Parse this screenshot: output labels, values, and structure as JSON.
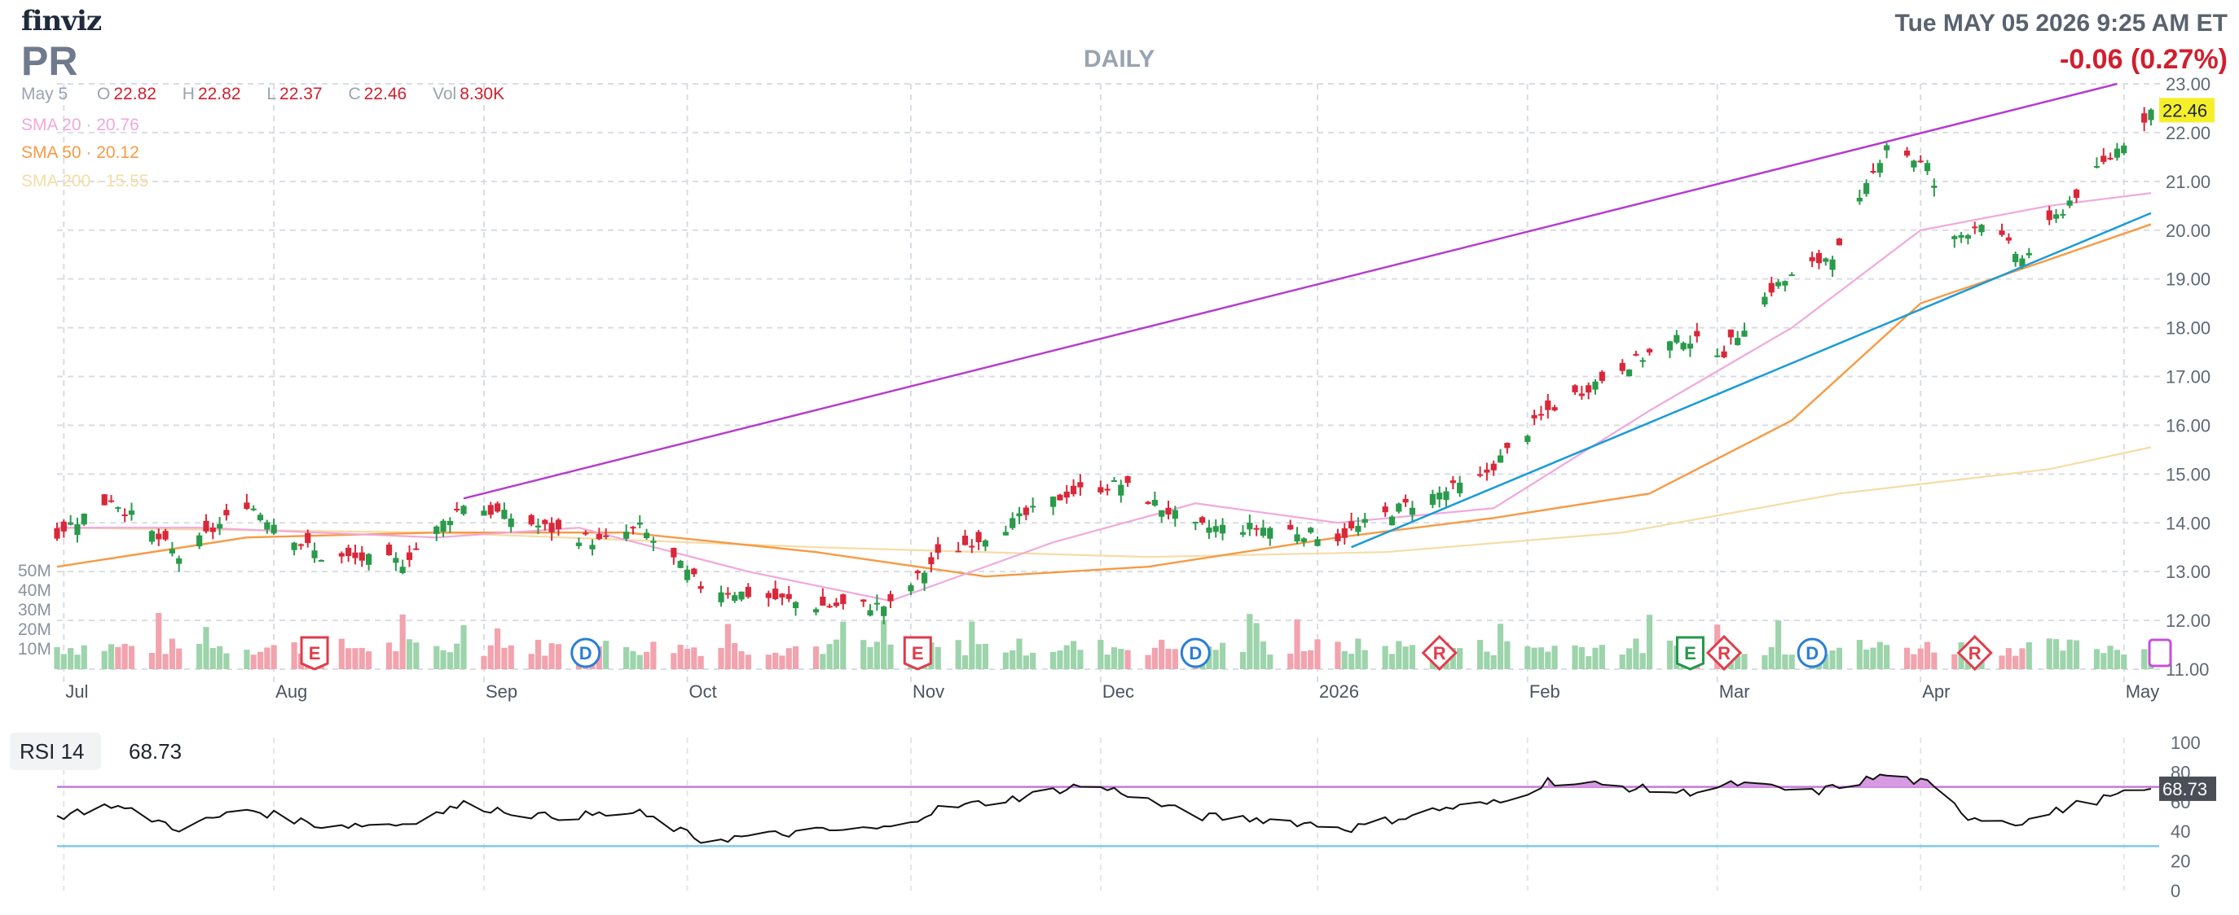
{
  "header": {
    "logo": "finviz",
    "ticker": "PR",
    "timeframe": "DAILY",
    "datetime": "Tue MAY 05 2026 9:25 AM ET",
    "change": "-0.06 (0.27%)"
  },
  "ohlc": {
    "date": "May 5",
    "open_label": "O",
    "open": "22.82",
    "high_label": "H",
    "high": "22.82",
    "low_label": "L",
    "low": "22.37",
    "close_label": "C",
    "close": "22.46",
    "vol_label": "Vol",
    "vol": "8.30K"
  },
  "indicators": {
    "sma20": "SMA 20 · 20.76",
    "sma50": "SMA 50 · 20.12",
    "sma200": "SMA 200 · 15.55"
  },
  "rsi": {
    "label": "RSI 14",
    "value": "68.73"
  },
  "colors": {
    "up": "#2a9a4b",
    "down": "#d9283a",
    "up_vol": "#9dd4ab",
    "down_vol": "#f2a3ad",
    "sma20": "#f0a9dc",
    "sma50": "#f79a45",
    "sma200": "#f6dca6",
    "trend_upper": "#b43cd0",
    "trend_lower": "#1a9bd7",
    "rsi_line": "#111111",
    "rsi_overbought": "#c47ad8",
    "rsi_oversold": "#7fc9ee"
  },
  "chart_data": [
    {
      "type": "candlestick",
      "title": "PR",
      "timeframe": "DAILY",
      "y_axis": {
        "ticks": [
          "11.00",
          "12.00",
          "13.00",
          "14.00",
          "15.00",
          "16.00",
          "17.00",
          "18.00",
          "19.00",
          "20.00",
          "21.00",
          "22.00",
          "23.00"
        ],
        "range": [
          11,
          23
        ],
        "position": "right"
      },
      "x_axis": {
        "ticks": [
          "Jul",
          "Aug",
          "Sep",
          "Oct",
          "Nov",
          "Dec",
          "2026",
          "Feb",
          "Mar",
          "Apr",
          "May"
        ],
        "range": [
          "2025-06-30",
          "2026-05-05"
        ]
      },
      "last_price_label": "22.46",
      "grid": true,
      "close_path": [
        {
          "date": "2025-06-30",
          "close": 13.8
        },
        {
          "date": "2025-07-08",
          "close": 14.5
        },
        {
          "date": "2025-07-18",
          "close": 13.3
        },
        {
          "date": "2025-07-28",
          "close": 14.4
        },
        {
          "date": "2025-08-08",
          "close": 13.3
        },
        {
          "date": "2025-08-20",
          "close": 13.2
        },
        {
          "date": "2025-08-29",
          "close": 14.4
        },
        {
          "date": "2025-09-10",
          "close": 13.9
        },
        {
          "date": "2025-09-18",
          "close": 13.6
        },
        {
          "date": "2025-09-24",
          "close": 13.9
        },
        {
          "date": "2025-10-03",
          "close": 12.7
        },
        {
          "date": "2025-10-20",
          "close": 12.3
        },
        {
          "date": "2025-10-31",
          "close": 12.3
        },
        {
          "date": "2025-11-07",
          "close": 13.3
        },
        {
          "date": "2025-11-18",
          "close": 14.0
        },
        {
          "date": "2025-11-26",
          "close": 14.6
        },
        {
          "date": "2025-12-04",
          "close": 14.8
        },
        {
          "date": "2025-12-15",
          "close": 13.9
        },
        {
          "date": "2025-12-26",
          "close": 13.9
        },
        {
          "date": "2026-01-05",
          "close": 13.7
        },
        {
          "date": "2026-01-14",
          "close": 14.3
        },
        {
          "date": "2026-01-26",
          "close": 14.9
        },
        {
          "date": "2026-02-05",
          "close": 16.3
        },
        {
          "date": "2026-02-16",
          "close": 17.2
        },
        {
          "date": "2026-02-25",
          "close": 17.8
        },
        {
          "date": "2026-03-03",
          "close": 17.5
        },
        {
          "date": "2026-03-10",
          "close": 18.8
        },
        {
          "date": "2026-03-20",
          "close": 19.6
        },
        {
          "date": "2026-03-27",
          "close": 21.8
        },
        {
          "date": "2026-04-02",
          "close": 21.3
        },
        {
          "date": "2026-04-06",
          "close": 19.8
        },
        {
          "date": "2026-04-10",
          "close": 20.2
        },
        {
          "date": "2026-04-16",
          "close": 19.4
        },
        {
          "date": "2026-04-23",
          "close": 20.6
        },
        {
          "date": "2026-04-29",
          "close": 21.5
        },
        {
          "date": "2026-05-05",
          "close": 22.46
        }
      ],
      "sma20_path": [
        {
          "date": "2025-06-30",
          "value": 13.9
        },
        {
          "date": "2025-07-21",
          "value": 13.9
        },
        {
          "date": "2025-08-25",
          "value": 13.7
        },
        {
          "date": "2025-09-15",
          "value": 13.9
        },
        {
          "date": "2025-10-10",
          "value": 13.0
        },
        {
          "date": "2025-10-31",
          "value": 12.4
        },
        {
          "date": "2025-11-24",
          "value": 13.6
        },
        {
          "date": "2025-12-15",
          "value": 14.4
        },
        {
          "date": "2026-01-05",
          "value": 14.0
        },
        {
          "date": "2026-01-28",
          "value": 14.3
        },
        {
          "date": "2026-02-20",
          "value": 16.3
        },
        {
          "date": "2026-03-13",
          "value": 18.0
        },
        {
          "date": "2026-04-01",
          "value": 20.0
        },
        {
          "date": "2026-04-20",
          "value": 20.5
        },
        {
          "date": "2026-05-05",
          "value": 20.76
        }
      ],
      "sma50_path": [
        {
          "date": "2025-06-30",
          "value": 13.1
        },
        {
          "date": "2025-07-28",
          "value": 13.7
        },
        {
          "date": "2025-08-25",
          "value": 13.8
        },
        {
          "date": "2025-09-22",
          "value": 13.8
        },
        {
          "date": "2025-10-20",
          "value": 13.4
        },
        {
          "date": "2025-11-14",
          "value": 12.9
        },
        {
          "date": "2025-12-08",
          "value": 13.1
        },
        {
          "date": "2026-01-05",
          "value": 13.7
        },
        {
          "date": "2026-01-28",
          "value": 14.1
        },
        {
          "date": "2026-02-20",
          "value": 14.6
        },
        {
          "date": "2026-03-13",
          "value": 16.1
        },
        {
          "date": "2026-04-01",
          "value": 18.5
        },
        {
          "date": "2026-04-20",
          "value": 19.4
        },
        {
          "date": "2026-05-05",
          "value": 20.12
        }
      ],
      "sma200_path": [
        {
          "date": "2025-06-30",
          "value": 13.9
        },
        {
          "date": "2025-08-25",
          "value": 13.8
        },
        {
          "date": "2025-10-20",
          "value": 13.5
        },
        {
          "date": "2025-12-08",
          "value": 13.3
        },
        {
          "date": "2026-01-12",
          "value": 13.4
        },
        {
          "date": "2026-02-16",
          "value": 13.8
        },
        {
          "date": "2026-03-20",
          "value": 14.6
        },
        {
          "date": "2026-04-20",
          "value": 15.1
        },
        {
          "date": "2026-05-05",
          "value": 15.55
        }
      ],
      "trendlines": [
        {
          "name": "upper",
          "start": {
            "date": "2025-08-29",
            "value": 14.5
          },
          "end": {
            "date": "2026-04-30",
            "value": 23.0
          }
        },
        {
          "name": "lower",
          "start": {
            "date": "2026-01-07",
            "value": 13.5
          },
          "end": {
            "date": "2026-05-05",
            "value": 20.35
          }
        }
      ],
      "volume_axis": {
        "ticks": [
          "10M",
          "20M",
          "30M",
          "40M",
          "50M"
        ]
      },
      "events": [
        {
          "date": "2025-08-07",
          "label": "E",
          "kind": "earnings"
        },
        {
          "date": "2025-09-16",
          "label": "D",
          "kind": "dividend"
        },
        {
          "date": "2025-11-04",
          "label": "E",
          "kind": "earnings"
        },
        {
          "date": "2025-12-15",
          "label": "D",
          "kind": "dividend"
        },
        {
          "date": "2026-01-20",
          "label": "R",
          "kind": "rating"
        },
        {
          "date": "2026-02-26",
          "label": "E",
          "kind": "earnings-green"
        },
        {
          "date": "2026-03-03",
          "label": "R",
          "kind": "rating"
        },
        {
          "date": "2026-03-16",
          "label": "D",
          "kind": "dividend"
        },
        {
          "date": "2026-04-09",
          "label": "R",
          "kind": "rating"
        }
      ]
    },
    {
      "type": "line",
      "title": "RSI 14",
      "y_axis": {
        "ticks": [
          "0",
          "20",
          "40",
          "60",
          "80",
          "100"
        ],
        "range": [
          0,
          100
        ]
      },
      "overbought": 70,
      "oversold": 30,
      "last_value_label": "68.73",
      "path": [
        {
          "date": "2025-06-30",
          "value": 50
        },
        {
          "date": "2025-07-08",
          "value": 58
        },
        {
          "date": "2025-07-18",
          "value": 42
        },
        {
          "date": "2025-07-28",
          "value": 55
        },
        {
          "date": "2025-08-08",
          "value": 44
        },
        {
          "date": "2025-08-20",
          "value": 45
        },
        {
          "date": "2025-08-29",
          "value": 58
        },
        {
          "date": "2025-09-10",
          "value": 50
        },
        {
          "date": "2025-09-24",
          "value": 52
        },
        {
          "date": "2025-10-03",
          "value": 34
        },
        {
          "date": "2025-10-20",
          "value": 40
        },
        {
          "date": "2025-10-31",
          "value": 42
        },
        {
          "date": "2025-11-07",
          "value": 55
        },
        {
          "date": "2025-11-18",
          "value": 62
        },
        {
          "date": "2025-11-28",
          "value": 71
        },
        {
          "date": "2025-12-04",
          "value": 67
        },
        {
          "date": "2025-12-15",
          "value": 50
        },
        {
          "date": "2025-12-26",
          "value": 48
        },
        {
          "date": "2026-01-07",
          "value": 42
        },
        {
          "date": "2026-01-20",
          "value": 55
        },
        {
          "date": "2026-01-30",
          "value": 60
        },
        {
          "date": "2026-02-05",
          "value": 74
        },
        {
          "date": "2026-02-16",
          "value": 70
        },
        {
          "date": "2026-02-25",
          "value": 66
        },
        {
          "date": "2026-03-05",
          "value": 72
        },
        {
          "date": "2026-03-16",
          "value": 66
        },
        {
          "date": "2026-03-27",
          "value": 78
        },
        {
          "date": "2026-04-02",
          "value": 72
        },
        {
          "date": "2026-04-08",
          "value": 50
        },
        {
          "date": "2026-04-16",
          "value": 46
        },
        {
          "date": "2026-04-24",
          "value": 58
        },
        {
          "date": "2026-05-05",
          "value": 68.73
        }
      ]
    }
  ]
}
